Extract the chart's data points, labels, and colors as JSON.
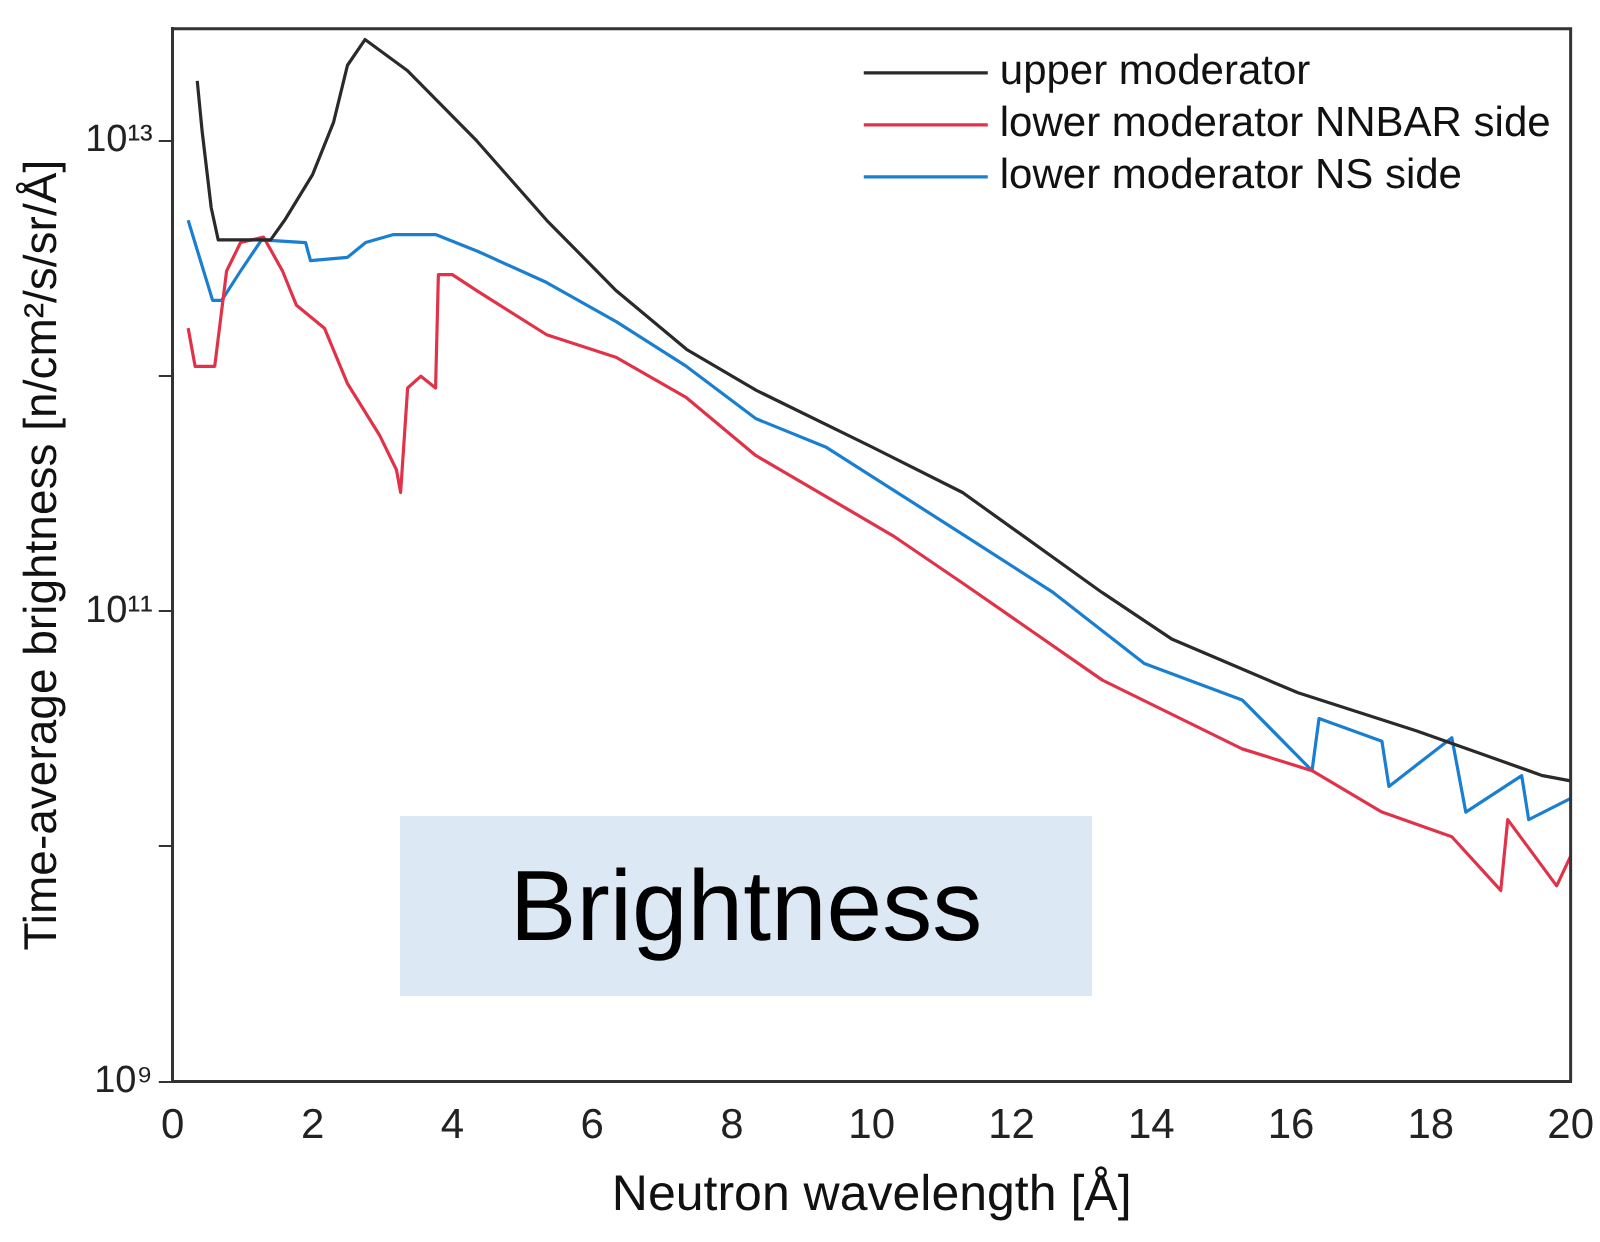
{
  "chart_data": {
    "type": "line",
    "xlabel": "Neutron wavelength [Å]",
    "ylabel": "Time-average brightness [n/cm²/s/sr/Å]",
    "log": "y",
    "legend": "top right",
    "xlim": [
      0,
      20
    ],
    "xticks": [
      0,
      2,
      4,
      6,
      8,
      10,
      12,
      14,
      16,
      18,
      20
    ],
    "ylim": [
      1000000000,
      30000000000000
    ],
    "yticks": [
      {
        "value": 1000000000,
        "label": "10⁹"
      },
      {
        "value": 10000000000,
        "label": null
      },
      {
        "value": 100000000000,
        "label": "10¹¹"
      },
      {
        "value": 1000000000000,
        "label": null
      },
      {
        "value": 10000000000000,
        "label": "10¹³"
      }
    ],
    "annotations": [
      "Brightness"
    ],
    "series": [
      {
        "name": "upper moderator",
        "color": "#2a2a2a",
        "x": [
          0.35,
          0.42,
          0.55,
          0.65,
          1.4,
          1.6,
          2.0,
          2.3,
          2.5,
          2.75,
          3.35,
          4.35,
          5.35,
          6.35,
          7.35,
          8.35,
          10,
          11.3,
          13.3,
          14.3,
          16.1,
          17.8,
          19.6,
          20
        ],
        "values": [
          18000000000000,
          11000000000000,
          5200000000000,
          3800000000000,
          3800000000000,
          4600000000000,
          7200000000000,
          12000000000000,
          21000000000000,
          27000000000000,
          20000000000000,
          10000000000000,
          4600000000000,
          2300000000000,
          1300000000000,
          870000000000,
          500000000000,
          320000000000,
          120000000000,
          76000000000,
          45000000000,
          31000000000,
          20000000000,
          19000000000
        ]
      },
      {
        "name": "lower moderator NNBAR side",
        "color": "#e0334a",
        "x": [
          0.22,
          0.32,
          0.6,
          0.77,
          0.97,
          1.3,
          1.57,
          1.77,
          2.17,
          2.5,
          2.96,
          3.2,
          3.26,
          3.36,
          3.55,
          3.76,
          3.8,
          4.0,
          4.36,
          5.35,
          6.35,
          7.35,
          8.34,
          10.3,
          11.33,
          13.3,
          15.3,
          16.3,
          17.3,
          18.3,
          19.0,
          19.1,
          19.8,
          20
        ],
        "values": [
          1600000000000,
          1100000000000,
          1100000000000,
          2800000000000,
          3700000000000,
          3900000000000,
          2800000000000,
          2000000000000,
          1600000000000,
          930000000000,
          560000000000,
          400000000000,
          320000000000,
          890000000000,
          1000000000000,
          890000000000,
          2700000000000,
          2700000000000,
          2300000000000,
          1500000000000,
          1200000000000,
          810000000000,
          460000000000,
          210000000000,
          130000000000,
          51000000000,
          26000000000,
          21000000000,
          14000000000,
          11000000000,
          6500000000,
          13000000000,
          6800000000,
          9100000000
        ]
      },
      {
        "name": "lower moderator NS side",
        "color": "#1a7fd0",
        "x": [
          0.22,
          0.57,
          0.7,
          0.97,
          1.27,
          1.9,
          1.97,
          2.5,
          2.76,
          3.16,
          3.76,
          4.36,
          5.35,
          6.35,
          7.35,
          8.34,
          9.34,
          11.33,
          12.6,
          13.9,
          15.3,
          16.3,
          16.4,
          17.3,
          17.4,
          18.3,
          18.5,
          19.3,
          19.4,
          20
        ],
        "values": [
          4600000000000,
          2100000000000,
          2100000000000,
          2800000000000,
          3800000000000,
          3700000000000,
          3100000000000,
          3200000000000,
          3700000000000,
          4000000000000,
          4000000000000,
          3400000000000,
          2500000000000,
          1700000000000,
          1100000000000,
          660000000000,
          500000000000,
          210000000000,
          120000000000,
          60000000000,
          42000000000,
          21000000000,
          35000000000,
          28000000000,
          18000000000,
          29000000000,
          14000000000,
          20000000000,
          13000000000,
          16000000000
        ]
      }
    ]
  }
}
